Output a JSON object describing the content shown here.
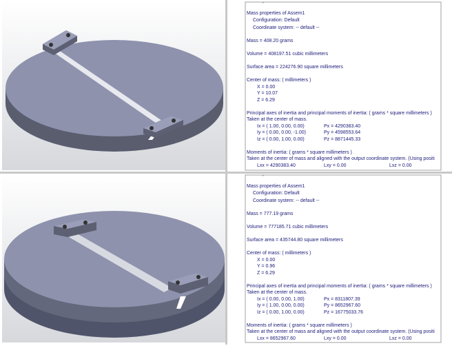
{
  "panels": [
    {
      "header_partial": "Report coordinate values relative to:",
      "title": "Mass properties of Assem1",
      "configuration": "Configuration: Default",
      "coordinate_system": "Coordinate system: -- default --",
      "mass": "Mass = 408.20 grams",
      "volume": "Volume = 408197.51 cubic millimeters",
      "surface_area": "Surface area = 224276.90  square millimeters",
      "center_title": "Center of mass: ( millimeters )",
      "center": [
        "X = 0.00",
        "Y = 10.07",
        "Z = 6.29"
      ],
      "principal_title": "Principal axes of inertia and principal moments of inertia: ( grams *  square millimeters )",
      "principal_note": "Taken at the center of mass.",
      "axes": [
        [
          "Ix = ( 1.00,  0.00,  0.00)",
          "Px = 4290383.40"
        ],
        [
          "Iy = ( 0.00,  0.00, -1.00)",
          "Py = 4598553.64"
        ],
        [
          "Iz = ( 0.00,  1.00,  0.00)",
          "Pz = 8871445.33"
        ]
      ],
      "moments_title": "Moments of inertia: ( grams *  square millimeters )",
      "moments_note": "Taken at the center of mass and aligned with the output coordinate system. (Using positi",
      "moments": [
        "Lxx = 4290383.40",
        "Lxy = 0.00",
        "Lxz = 0.00"
      ]
    },
    {
      "header_partial": "Report coordinate values relative to:",
      "title": "Mass properties of Assem1",
      "configuration": "Configuration: Default",
      "coordinate_system": "Coordinate system: -- default --",
      "mass": "Mass = 777.19 grams",
      "volume": "Volume = 777185.71 cubic millimeters",
      "surface_area": "Surface area = 435744.80  square millimeters",
      "center_title": "Center of mass: ( millimeters )",
      "center": [
        "X = 0.00",
        "Y = 0.96",
        "Z = 6.29"
      ],
      "principal_title": "Principal axes of inertia and principal moments of inertia: ( grams *  square millimeters )",
      "principal_note": "Taken at the center of mass.",
      "axes": [
        [
          "Ix = ( 0.00,  0.00,  1.00)",
          "Px = 8311807.39"
        ],
        [
          "Iy = ( 1.00,  0.00,  0.00)",
          "Py = 8652967.60"
        ],
        [
          "Iz = ( 0.00,  1.00,  0.00)",
          "Pz = 16775033.76"
        ]
      ],
      "moments_title": "Moments of inertia: ( grams *  square millimeters )",
      "moments_note": "Taken at the center of mass and aligned with the output coordinate system. (Using positi",
      "moments": [
        "Lxx = 8652967.60",
        "Lxy = 0.00",
        "Lxz = 0.00"
      ]
    }
  ]
}
